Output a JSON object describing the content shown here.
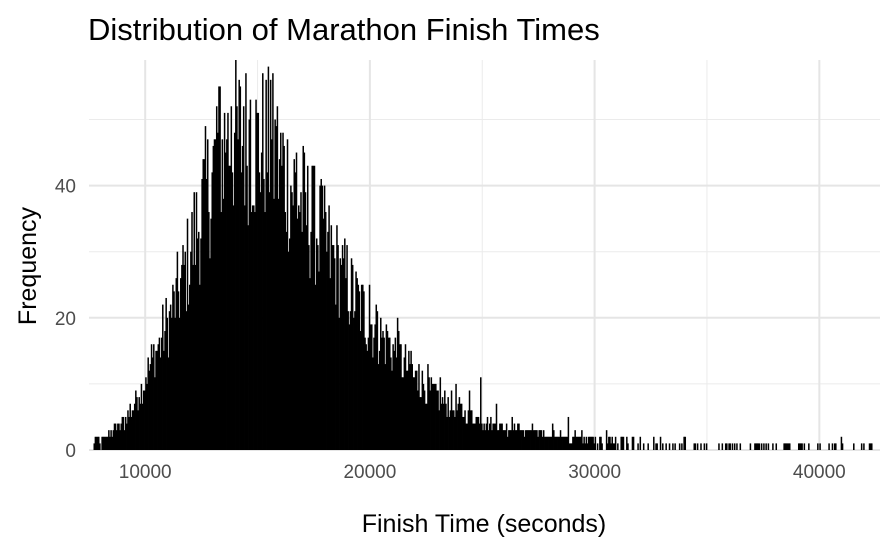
{
  "chart_data": {
    "type": "bar",
    "subtype": "histogram",
    "title": "Distribution of Marathon Finish Times",
    "xlabel": "Finish Time (seconds)",
    "ylabel": "Frequency",
    "xlim": [
      7500,
      42700
    ],
    "ylim": [
      0,
      59
    ],
    "xticks": [
      10000,
      20000,
      30000,
      40000
    ],
    "yticks": [
      0,
      20,
      40
    ],
    "grid": true,
    "legend": "none",
    "bar_color": "#000000",
    "anchors": [
      [
        7700,
        1
      ],
      [
        8000,
        1
      ],
      [
        8500,
        2
      ],
      [
        9000,
        4
      ],
      [
        9500,
        7
      ],
      [
        10000,
        11
      ],
      [
        10500,
        15
      ],
      [
        11000,
        19
      ],
      [
        11500,
        24
      ],
      [
        12000,
        30
      ],
      [
        12500,
        36
      ],
      [
        13000,
        42
      ],
      [
        13500,
        46
      ],
      [
        14000,
        47
      ],
      [
        14500,
        47
      ],
      [
        15000,
        46
      ],
      [
        15500,
        46
      ],
      [
        16000,
        43
      ],
      [
        16500,
        40
      ],
      [
        17000,
        37
      ],
      [
        17500,
        34
      ],
      [
        18000,
        31
      ],
      [
        18500,
        28
      ],
      [
        19000,
        25
      ],
      [
        19500,
        22
      ],
      [
        20000,
        19
      ],
      [
        20500,
        17
      ],
      [
        21000,
        15
      ],
      [
        21500,
        13
      ],
      [
        22000,
        11
      ],
      [
        22500,
        9.5
      ],
      [
        23000,
        8
      ],
      [
        23500,
        7
      ],
      [
        24000,
        6
      ],
      [
        24500,
        5.2
      ],
      [
        25000,
        4.5
      ],
      [
        25500,
        3.8
      ],
      [
        26000,
        3.2
      ],
      [
        26500,
        2.7
      ],
      [
        27000,
        2.3
      ],
      [
        28000,
        1.8
      ],
      [
        29000,
        1.4
      ],
      [
        30000,
        1.1
      ],
      [
        31000,
        0.9
      ],
      [
        32000,
        0.7
      ],
      [
        34000,
        0.5
      ],
      [
        36000,
        0.4
      ],
      [
        38000,
        0.3
      ],
      [
        40000,
        0.3
      ],
      [
        42500,
        0.3
      ]
    ],
    "spikes": [
      [
        13150,
        52
      ],
      [
        13300,
        55
      ],
      [
        13600,
        47
      ],
      [
        13800,
        52
      ],
      [
        14050,
        50
      ],
      [
        14350,
        52
      ],
      [
        14650,
        53
      ],
      [
        15200,
        48
      ],
      [
        15550,
        56
      ],
      [
        15800,
        49
      ],
      [
        16100,
        48
      ],
      [
        16300,
        46
      ],
      [
        16700,
        45
      ],
      [
        17050,
        43
      ],
      [
        17400,
        43
      ],
      [
        17800,
        41
      ],
      [
        18250,
        33
      ],
      [
        18700,
        28
      ],
      [
        19150,
        27
      ],
      [
        19600,
        23
      ],
      [
        19950,
        25
      ],
      [
        20300,
        21
      ],
      [
        20750,
        18
      ],
      [
        21200,
        20
      ],
      [
        21800,
        15
      ],
      [
        22150,
        13
      ],
      [
        22550,
        13
      ],
      [
        23100,
        11
      ],
      [
        23800,
        10
      ],
      [
        24400,
        9
      ],
      [
        24900,
        11
      ],
      [
        25600,
        7
      ],
      [
        26300,
        5
      ],
      [
        27200,
        4
      ],
      [
        28100,
        4
      ],
      [
        28800,
        5
      ],
      [
        29400,
        3
      ],
      [
        30500,
        3
      ],
      [
        31200,
        2
      ],
      [
        32000,
        2
      ],
      [
        34000,
        2
      ],
      [
        35500,
        1
      ],
      [
        37500,
        1
      ],
      [
        39200,
        1
      ],
      [
        40950,
        2
      ]
    ]
  }
}
